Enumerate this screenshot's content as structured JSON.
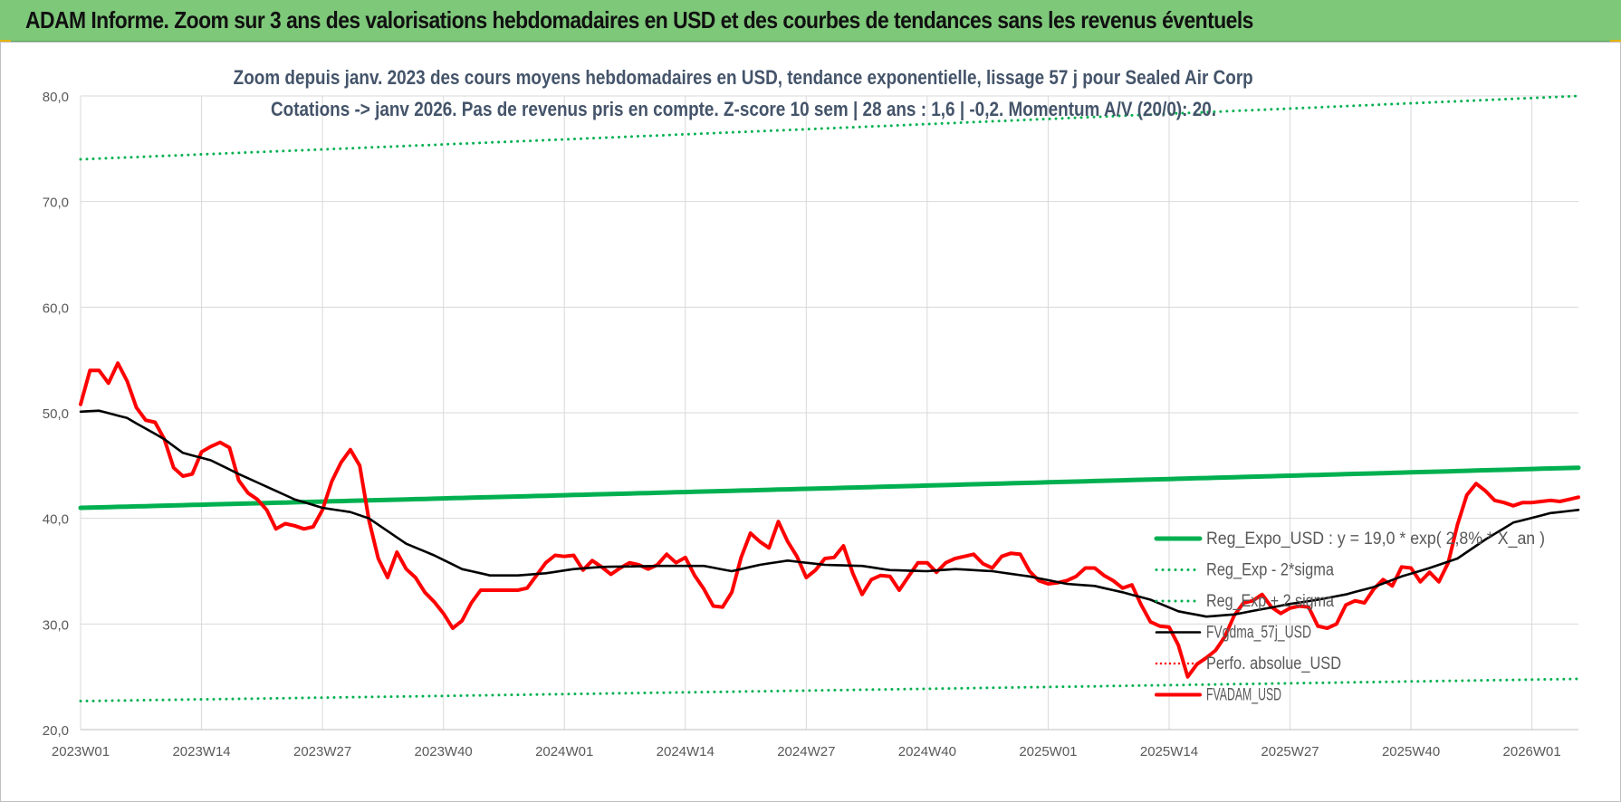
{
  "banner": {
    "title": "ADAM Informe. Zoom sur 3 ans des valorisations hebdomadaires en USD et des courbes de tendances sans les revenus éventuels"
  },
  "colors": {
    "banner_bg": "#7ec87a",
    "trend": "#00b050",
    "price": "#ff0000",
    "smooth": "#000000",
    "title_text": "#44546a",
    "axis_text": "#595959",
    "grid": "#d9d9d9"
  },
  "chart_data": {
    "type": "line",
    "title_line1": "Zoom depuis janv. 2023 des cours moyens hebdomadaires en USD, tendance exponentielle, lissage 57 j pour Sealed Air Corp",
    "title_line2": "Cotations -> janv 2026. Pas de revenus pris en compte. Z-score 10 sem | 28 ans : 1,6 | -0,2. Momentum A/V (20/0): 20.",
    "ylim": [
      20,
      80
    ],
    "y_ticks": [
      "20,0",
      "30,0",
      "40,0",
      "50,0",
      "60,0",
      "70,0",
      "80,0"
    ],
    "x_ticks": [
      "2023W01",
      "2023W14",
      "2023W27",
      "2023W40",
      "2024W01",
      "2024W14",
      "2024W27",
      "2024W40",
      "2025W01",
      "2025W14",
      "2025W27",
      "2025W40",
      "2026W01"
    ],
    "x_tick_index": [
      0,
      13,
      26,
      39,
      52,
      65,
      78,
      91,
      104,
      117,
      130,
      143,
      156
    ],
    "n_weeks": 162,
    "grid": true,
    "legend_position": "right",
    "series": [
      {
        "name": "Reg_Expo_USD : y = 19,0 * exp( 2,8% *  X_an )",
        "style": "solid-thick",
        "color": "#00b050",
        "start": 41.0,
        "end": 44.8
      },
      {
        "name": "Reg_Exp - 2*sigma",
        "style": "dotted",
        "color": "#00b050",
        "start": 22.7,
        "end": 24.8
      },
      {
        "name": "Reg_Exp + 2 sigma",
        "style": "dotted",
        "color": "#00b050",
        "start": 74.0,
        "end": 80.0
      },
      {
        "name": "FVgdma_57j_USD",
        "style": "solid",
        "color": "#000000",
        "keys": [
          [
            0,
            50.1
          ],
          [
            2,
            50.2
          ],
          [
            5,
            49.5
          ],
          [
            9,
            47.5
          ],
          [
            11,
            46.2
          ],
          [
            14,
            45.5
          ],
          [
            17,
            44.2
          ],
          [
            20,
            43.0
          ],
          [
            23,
            41.8
          ],
          [
            26,
            41.0
          ],
          [
            29,
            40.6
          ],
          [
            31,
            40.0
          ],
          [
            33,
            38.8
          ],
          [
            35,
            37.6
          ],
          [
            38,
            36.5
          ],
          [
            41,
            35.2
          ],
          [
            44,
            34.6
          ],
          [
            47,
            34.6
          ],
          [
            50,
            34.8
          ],
          [
            53,
            35.2
          ],
          [
            56,
            35.4
          ],
          [
            62,
            35.5
          ],
          [
            67,
            35.5
          ],
          [
            70,
            35.0
          ],
          [
            73,
            35.6
          ],
          [
            76,
            36.0
          ],
          [
            80,
            35.6
          ],
          [
            84,
            35.5
          ],
          [
            87,
            35.1
          ],
          [
            91,
            35.0
          ],
          [
            94,
            35.2
          ],
          [
            98,
            35.0
          ],
          [
            102,
            34.5
          ],
          [
            106,
            33.8
          ],
          [
            109,
            33.6
          ],
          [
            112,
            33.0
          ],
          [
            115,
            32.3
          ],
          [
            118,
            31.2
          ],
          [
            121,
            30.7
          ],
          [
            124,
            30.9
          ],
          [
            127,
            31.4
          ],
          [
            130,
            31.9
          ],
          [
            133,
            32.3
          ],
          [
            136,
            32.8
          ],
          [
            139,
            33.5
          ],
          [
            142,
            34.5
          ],
          [
            145,
            35.3
          ],
          [
            148,
            36.2
          ],
          [
            151,
            38.0
          ],
          [
            154,
            39.6
          ],
          [
            158,
            40.5
          ],
          [
            161,
            40.8
          ]
        ]
      },
      {
        "name": "Perfo. absolue_USD",
        "style": "dotted",
        "color": "#ff0000"
      },
      {
        "name": "FVADAM_USD",
        "style": "solid-thick",
        "color": "#ff0000",
        "keys": [
          [
            0,
            50.8
          ],
          [
            1,
            54.0
          ],
          [
            2,
            54.0
          ],
          [
            3,
            52.8
          ],
          [
            4,
            54.7
          ],
          [
            5,
            53.0
          ],
          [
            6,
            50.5
          ],
          [
            7,
            49.3
          ],
          [
            8,
            49.1
          ],
          [
            9,
            47.5
          ],
          [
            10,
            44.8
          ],
          [
            11,
            44.0
          ],
          [
            12,
            44.2
          ],
          [
            13,
            46.3
          ],
          [
            14,
            46.8
          ],
          [
            15,
            47.2
          ],
          [
            16,
            46.7
          ],
          [
            17,
            43.6
          ],
          [
            18,
            42.4
          ],
          [
            19,
            41.8
          ],
          [
            20,
            40.8
          ],
          [
            21,
            39.0
          ],
          [
            22,
            39.5
          ],
          [
            23,
            39.3
          ],
          [
            24,
            39.0
          ],
          [
            25,
            39.2
          ],
          [
            26,
            40.8
          ],
          [
            27,
            43.5
          ],
          [
            28,
            45.3
          ],
          [
            29,
            46.5
          ],
          [
            30,
            45.0
          ],
          [
            31,
            39.8
          ],
          [
            32,
            36.2
          ],
          [
            33,
            34.4
          ],
          [
            34,
            36.8
          ],
          [
            35,
            35.2
          ],
          [
            36,
            34.4
          ],
          [
            37,
            33.0
          ],
          [
            38,
            32.1
          ],
          [
            39,
            31.0
          ],
          [
            40,
            29.6
          ],
          [
            41,
            30.3
          ],
          [
            42,
            32.0
          ],
          [
            43,
            33.2
          ],
          [
            47,
            33.2
          ],
          [
            48,
            33.4
          ],
          [
            49,
            34.6
          ],
          [
            50,
            35.8
          ],
          [
            51,
            36.5
          ],
          [
            52,
            36.4
          ],
          [
            53,
            36.5
          ],
          [
            54,
            35.1
          ],
          [
            55,
            36.0
          ],
          [
            56,
            35.4
          ],
          [
            57,
            34.7
          ],
          [
            58,
            35.3
          ],
          [
            59,
            35.8
          ],
          [
            60,
            35.6
          ],
          [
            61,
            35.2
          ],
          [
            62,
            35.6
          ],
          [
            63,
            36.6
          ],
          [
            64,
            35.8
          ],
          [
            65,
            36.3
          ],
          [
            66,
            34.6
          ],
          [
            67,
            33.3
          ],
          [
            68,
            31.7
          ],
          [
            69,
            31.6
          ],
          [
            70,
            33.0
          ],
          [
            71,
            36.3
          ],
          [
            72,
            38.6
          ],
          [
            73,
            37.8
          ],
          [
            74,
            37.2
          ],
          [
            75,
            39.7
          ],
          [
            76,
            37.8
          ],
          [
            77,
            36.4
          ],
          [
            78,
            34.4
          ],
          [
            79,
            35.1
          ],
          [
            80,
            36.2
          ],
          [
            81,
            36.3
          ],
          [
            82,
            37.4
          ],
          [
            83,
            34.8
          ],
          [
            84,
            32.8
          ],
          [
            85,
            34.2
          ],
          [
            86,
            34.6
          ],
          [
            87,
            34.5
          ],
          [
            88,
            33.2
          ],
          [
            89,
            34.5
          ],
          [
            90,
            35.8
          ],
          [
            91,
            35.8
          ],
          [
            92,
            34.9
          ],
          [
            93,
            35.8
          ],
          [
            94,
            36.2
          ],
          [
            95,
            36.4
          ],
          [
            96,
            36.6
          ],
          [
            97,
            35.7
          ],
          [
            98,
            35.3
          ],
          [
            99,
            36.4
          ],
          [
            100,
            36.7
          ],
          [
            101,
            36.6
          ],
          [
            102,
            35.0
          ],
          [
            103,
            34.1
          ],
          [
            104,
            33.8
          ],
          [
            105,
            33.9
          ],
          [
            106,
            34.1
          ],
          [
            107,
            34.5
          ],
          [
            108,
            35.3
          ],
          [
            109,
            35.3
          ],
          [
            110,
            34.6
          ],
          [
            111,
            34.1
          ],
          [
            112,
            33.4
          ],
          [
            113,
            33.7
          ],
          [
            114,
            31.8
          ],
          [
            115,
            30.2
          ],
          [
            116,
            29.8
          ],
          [
            117,
            29.7
          ],
          [
            118,
            28.0
          ],
          [
            119,
            25.0
          ],
          [
            120,
            26.2
          ],
          [
            121,
            26.8
          ],
          [
            122,
            27.5
          ],
          [
            123,
            28.8
          ],
          [
            124,
            30.8
          ],
          [
            125,
            32.0
          ],
          [
            126,
            32.2
          ],
          [
            127,
            32.8
          ],
          [
            128,
            31.6
          ],
          [
            129,
            31.0
          ],
          [
            130,
            31.5
          ],
          [
            131,
            31.7
          ],
          [
            132,
            31.6
          ],
          [
            133,
            29.8
          ],
          [
            134,
            29.6
          ],
          [
            135,
            30.0
          ],
          [
            136,
            31.8
          ],
          [
            137,
            32.2
          ],
          [
            138,
            32.0
          ],
          [
            139,
            33.3
          ],
          [
            140,
            34.2
          ],
          [
            141,
            33.6
          ],
          [
            142,
            35.4
          ],
          [
            143,
            35.3
          ],
          [
            144,
            34.0
          ],
          [
            145,
            34.9
          ],
          [
            146,
            34.0
          ],
          [
            147,
            35.8
          ],
          [
            148,
            39.4
          ],
          [
            149,
            42.2
          ],
          [
            150,
            43.3
          ],
          [
            151,
            42.6
          ],
          [
            152,
            41.7
          ],
          [
            153,
            41.5
          ],
          [
            154,
            41.2
          ],
          [
            155,
            41.5
          ],
          [
            156,
            41.5
          ],
          [
            157,
            41.6
          ],
          [
            158,
            41.7
          ],
          [
            159,
            41.6
          ],
          [
            160,
            41.8
          ],
          [
            161,
            42.0
          ]
        ]
      }
    ]
  }
}
